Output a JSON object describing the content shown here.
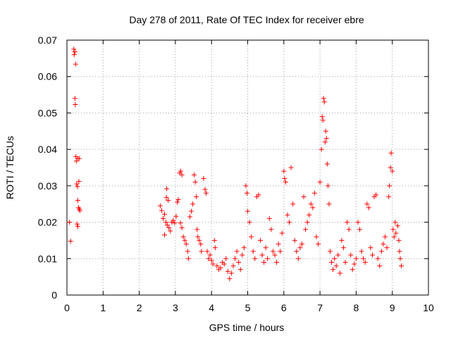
{
  "chart_data": {
    "type": "scatter",
    "title": "Day 278 of 2011, Rate Of TEC Index for receiver ebre",
    "xlabel": "GPS time / hours",
    "ylabel": "ROTI / TECUs",
    "xlim": [
      0,
      10
    ],
    "ylim": [
      0,
      0.07
    ],
    "x_ticks": [
      0,
      1,
      2,
      3,
      4,
      5,
      6,
      7,
      8,
      9,
      10
    ],
    "x_tick_labels": [
      "0",
      "1",
      "2",
      "3",
      "4",
      "5",
      "6",
      "7",
      "8",
      "9",
      "10"
    ],
    "y_ticks": [
      0,
      0.01,
      0.02,
      0.03,
      0.04,
      0.05,
      0.06,
      0.07
    ],
    "y_tick_labels": [
      "0",
      "0.01",
      "0.02",
      "0.03",
      "0.04",
      "0.05",
      "0.06",
      "0.07"
    ],
    "grid": true,
    "marker": "+",
    "color": "#ff0000",
    "series": [
      {
        "name": "ROTI",
        "points": [
          [
            0.07,
            0.02
          ],
          [
            0.1,
            0.0148
          ],
          [
            0.19,
            0.0675
          ],
          [
            0.2,
            0.066
          ],
          [
            0.22,
            0.0668
          ],
          [
            0.24,
            0.0634
          ],
          [
            0.22,
            0.054
          ],
          [
            0.23,
            0.0523
          ],
          [
            0.25,
            0.038
          ],
          [
            0.26,
            0.0368
          ],
          [
            0.3,
            0.0375
          ],
          [
            0.34,
            0.0375
          ],
          [
            0.27,
            0.0305
          ],
          [
            0.29,
            0.0298
          ],
          [
            0.33,
            0.0312
          ],
          [
            0.3,
            0.026
          ],
          [
            0.32,
            0.024
          ],
          [
            0.34,
            0.0236
          ],
          [
            0.36,
            0.0232
          ],
          [
            0.28,
            0.0195
          ],
          [
            0.3,
            0.0188
          ],
          [
            2.58,
            0.0245
          ],
          [
            2.62,
            0.0232
          ],
          [
            2.66,
            0.021
          ],
          [
            2.7,
            0.0222
          ],
          [
            2.74,
            0.02
          ],
          [
            2.7,
            0.0165
          ],
          [
            2.78,
            0.0192
          ],
          [
            2.82,
            0.0185
          ],
          [
            2.86,
            0.0176
          ],
          [
            2.75,
            0.0268
          ],
          [
            2.8,
            0.026
          ],
          [
            2.76,
            0.0292
          ],
          [
            2.9,
            0.02
          ],
          [
            2.94,
            0.0205
          ],
          [
            2.98,
            0.0198
          ],
          [
            3.02,
            0.0216
          ],
          [
            3.05,
            0.0255
          ],
          [
            3.08,
            0.0262
          ],
          [
            3.12,
            0.0335
          ],
          [
            3.15,
            0.034
          ],
          [
            3.18,
            0.033
          ],
          [
            3.14,
            0.0198
          ],
          [
            3.18,
            0.0185
          ],
          [
            3.22,
            0.016
          ],
          [
            3.26,
            0.015
          ],
          [
            3.3,
            0.014
          ],
          [
            3.34,
            0.012
          ],
          [
            3.36,
            0.01
          ],
          [
            3.4,
            0.0215
          ],
          [
            3.44,
            0.023
          ],
          [
            3.48,
            0.025
          ],
          [
            3.52,
            0.033
          ],
          [
            3.55,
            0.031
          ],
          [
            3.58,
            0.027
          ],
          [
            3.6,
            0.018
          ],
          [
            3.62,
            0.016
          ],
          [
            3.66,
            0.015
          ],
          [
            3.7,
            0.014
          ],
          [
            3.72,
            0.012
          ],
          [
            3.78,
            0.032
          ],
          [
            3.82,
            0.029
          ],
          [
            3.85,
            0.028
          ],
          [
            3.88,
            0.012
          ],
          [
            3.92,
            0.01
          ],
          [
            3.96,
            0.011
          ],
          [
            4.0,
            0.0095
          ],
          [
            4.04,
            0.0085
          ],
          [
            4.08,
            0.015
          ],
          [
            4.1,
            0.013
          ],
          [
            4.15,
            0.008
          ],
          [
            4.2,
            0.007
          ],
          [
            4.25,
            0.0075
          ],
          [
            4.3,
            0.009
          ],
          [
            4.35,
            0.0085
          ],
          [
            4.4,
            0.01
          ],
          [
            4.45,
            0.0065
          ],
          [
            4.5,
            0.0045
          ],
          [
            4.55,
            0.006
          ],
          [
            4.6,
            0.008
          ],
          [
            4.65,
            0.01
          ],
          [
            4.7,
            0.012
          ],
          [
            4.75,
            0.009
          ],
          [
            4.8,
            0.007
          ],
          [
            4.85,
            0.011
          ],
          [
            4.9,
            0.013
          ],
          [
            4.95,
            0.03
          ],
          [
            4.98,
            0.028
          ],
          [
            5.0,
            0.023
          ],
          [
            5.05,
            0.02
          ],
          [
            5.1,
            0.016
          ],
          [
            5.15,
            0.012
          ],
          [
            5.2,
            0.01
          ],
          [
            5.25,
            0.027
          ],
          [
            5.3,
            0.0275
          ],
          [
            5.35,
            0.015
          ],
          [
            5.4,
            0.011
          ],
          [
            5.45,
            0.009
          ],
          [
            5.5,
            0.013
          ],
          [
            5.55,
            0.01
          ],
          [
            5.6,
            0.021
          ],
          [
            5.65,
            0.018
          ],
          [
            5.7,
            0.012
          ],
          [
            5.75,
            0.011
          ],
          [
            5.8,
            0.009
          ],
          [
            5.85,
            0.014
          ],
          [
            5.9,
            0.012
          ],
          [
            5.95,
            0.017
          ],
          [
            6.0,
            0.034
          ],
          [
            6.02,
            0.032
          ],
          [
            6.05,
            0.031
          ],
          [
            6.1,
            0.022
          ],
          [
            6.15,
            0.02
          ],
          [
            6.2,
            0.035
          ],
          [
            6.25,
            0.025
          ],
          [
            6.3,
            0.015
          ],
          [
            6.35,
            0.012
          ],
          [
            6.4,
            0.01
          ],
          [
            6.45,
            0.013
          ],
          [
            6.5,
            0.014
          ],
          [
            6.55,
            0.027
          ],
          [
            6.6,
            0.018
          ],
          [
            6.65,
            0.02
          ],
          [
            6.7,
            0.022
          ],
          [
            6.75,
            0.025
          ],
          [
            6.8,
            0.024
          ],
          [
            6.85,
            0.028
          ],
          [
            6.9,
            0.016
          ],
          [
            6.95,
            0.014
          ],
          [
            7.0,
            0.031
          ],
          [
            7.04,
            0.04
          ],
          [
            7.06,
            0.049
          ],
          [
            7.08,
            0.048
          ],
          [
            7.1,
            0.054
          ],
          [
            7.12,
            0.053
          ],
          [
            7.14,
            0.042
          ],
          [
            7.16,
            0.045
          ],
          [
            7.18,
            0.043
          ],
          [
            7.2,
            0.036
          ],
          [
            7.22,
            0.03
          ],
          [
            7.25,
            0.025
          ],
          [
            7.28,
            0.012
          ],
          [
            7.32,
            0.009
          ],
          [
            7.36,
            0.007
          ],
          [
            7.4,
            0.01
          ],
          [
            7.45,
            0.008
          ],
          [
            7.5,
            0.011
          ],
          [
            7.55,
            0.006
          ],
          [
            7.6,
            0.015
          ],
          [
            7.65,
            0.013
          ],
          [
            7.7,
            0.009
          ],
          [
            7.75,
            0.02
          ],
          [
            7.8,
            0.018
          ],
          [
            7.85,
            0.011
          ],
          [
            7.9,
            0.007
          ],
          [
            7.95,
            0.0085
          ],
          [
            8.0,
            0.01
          ],
          [
            8.05,
            0.02
          ],
          [
            8.1,
            0.018
          ],
          [
            8.15,
            0.012
          ],
          [
            8.2,
            0.01
          ],
          [
            8.25,
            0.009
          ],
          [
            8.3,
            0.025
          ],
          [
            8.35,
            0.024
          ],
          [
            8.4,
            0.013
          ],
          [
            8.45,
            0.011
          ],
          [
            8.5,
            0.027
          ],
          [
            8.55,
            0.0275
          ],
          [
            8.6,
            0.01
          ],
          [
            8.65,
            0.008
          ],
          [
            8.7,
            0.012
          ],
          [
            8.75,
            0.014
          ],
          [
            8.8,
            0.016
          ],
          [
            8.85,
            0.013
          ],
          [
            8.9,
            0.027
          ],
          [
            8.92,
            0.03
          ],
          [
            8.95,
            0.035
          ],
          [
            8.97,
            0.039
          ],
          [
            9.0,
            0.034
          ],
          [
            9.02,
            0.018
          ],
          [
            9.05,
            0.016
          ],
          [
            9.08,
            0.02
          ],
          [
            9.1,
            0.017
          ],
          [
            9.15,
            0.019
          ],
          [
            9.18,
            0.015
          ],
          [
            9.2,
            0.012
          ],
          [
            9.22,
            0.01
          ],
          [
            9.25,
            0.008
          ]
        ]
      }
    ]
  }
}
